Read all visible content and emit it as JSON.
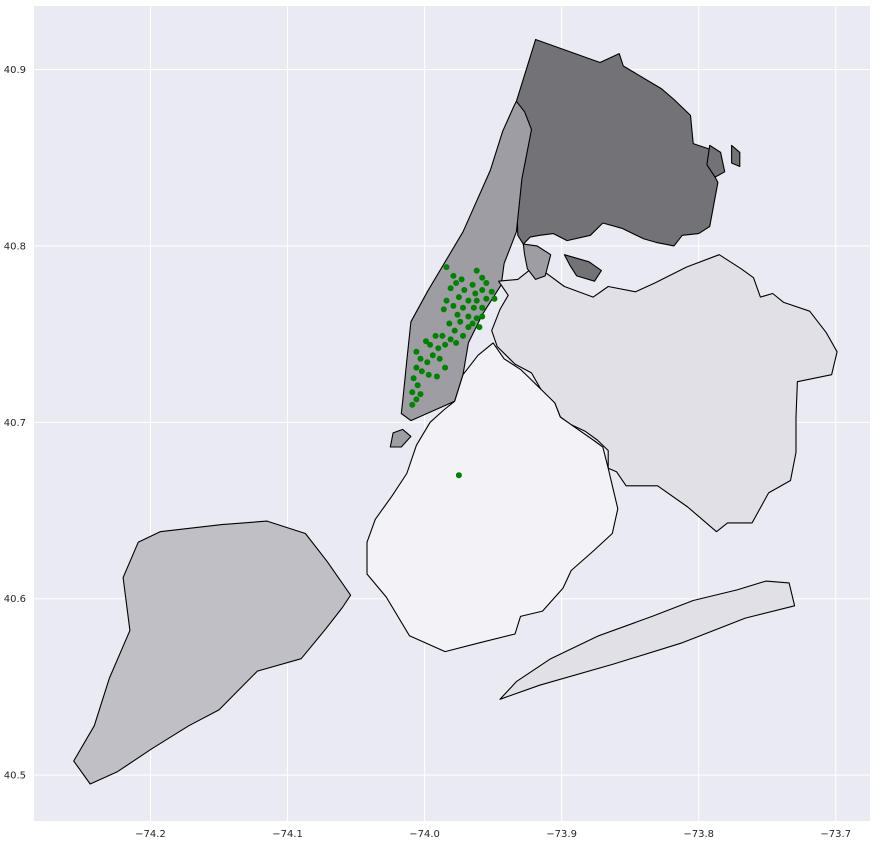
{
  "chart_data": {
    "type": "scatter",
    "xlim": [
      -74.285,
      -73.675
    ],
    "ylim": [
      40.474,
      40.936
    ],
    "grid": true,
    "x_ticks": [
      {
        "value": -74.2,
        "label": "−74.2"
      },
      {
        "value": -74.1,
        "label": "−74.1"
      },
      {
        "value": -74.0,
        "label": "−74.0"
      },
      {
        "value": -73.9,
        "label": "−73.9"
      },
      {
        "value": -73.8,
        "label": "−73.8"
      },
      {
        "value": -73.7,
        "label": "−73.7"
      }
    ],
    "y_ticks": [
      {
        "value": 40.5,
        "label": "40.5"
      },
      {
        "value": 40.6,
        "label": "40.6"
      },
      {
        "value": 40.7,
        "label": "40.7"
      },
      {
        "value": 40.8,
        "label": "40.8"
      },
      {
        "value": 40.9,
        "label": "40.9"
      }
    ],
    "colors": {
      "plot_background": "#eaeaf2",
      "grid": "#ffffff",
      "outline": "#000000",
      "points": "#008000",
      "bronx": "#737277",
      "manhattan": "#9e9da3",
      "queens": "#e1e0e6",
      "brooklyn": "#f2f2f7",
      "staten_island": "#c0bfc5"
    },
    "points": [
      [
        -73.984,
        40.788
      ],
      [
        -73.979,
        40.783
      ],
      [
        -73.973,
        40.781
      ],
      [
        -73.962,
        40.786
      ],
      [
        -73.958,
        40.782
      ],
      [
        -73.965,
        40.778
      ],
      [
        -73.955,
        40.779
      ],
      [
        -73.951,
        40.774
      ],
      [
        -73.958,
        40.775
      ],
      [
        -73.963,
        40.773
      ],
      [
        -73.971,
        40.775
      ],
      [
        -73.977,
        40.779
      ],
      [
        -73.981,
        40.776
      ],
      [
        -73.975,
        40.771
      ],
      [
        -73.968,
        40.769
      ],
      [
        -73.962,
        40.769
      ],
      [
        -73.955,
        40.77
      ],
      [
        -73.949,
        40.77
      ],
      [
        -73.958,
        40.765
      ],
      [
        -73.964,
        40.765
      ],
      [
        -73.972,
        40.765
      ],
      [
        -73.979,
        40.766
      ],
      [
        -73.984,
        40.769
      ],
      [
        -73.986,
        40.764
      ],
      [
        -73.976,
        40.761
      ],
      [
        -73.968,
        40.76
      ],
      [
        -73.962,
        40.759
      ],
      [
        -73.958,
        40.76
      ],
      [
        -73.965,
        40.756
      ],
      [
        -73.96,
        40.754
      ],
      [
        -73.968,
        40.754
      ],
      [
        -73.974,
        40.757
      ],
      [
        -73.978,
        40.752
      ],
      [
        -73.982,
        40.756
      ],
      [
        -73.987,
        40.749
      ],
      [
        -73.992,
        40.749
      ],
      [
        -73.981,
        40.747
      ],
      [
        -73.985,
        40.744
      ],
      [
        -73.99,
        40.742
      ],
      [
        -73.996,
        40.744
      ],
      [
        -73.999,
        40.746
      ],
      [
        -73.977,
        40.745
      ],
      [
        -73.972,
        40.749
      ],
      [
        -73.994,
        40.738
      ],
      [
        -73.998,
        40.734
      ],
      [
        -74.003,
        40.736
      ],
      [
        -74.006,
        40.74
      ],
      [
        -74.006,
        40.731
      ],
      [
        -74.002,
        40.729
      ],
      [
        -73.989,
        40.736
      ],
      [
        -73.985,
        40.731
      ],
      [
        -73.991,
        40.726
      ],
      [
        -73.997,
        40.727
      ],
      [
        -74.008,
        40.725
      ],
      [
        -74.005,
        40.721
      ],
      [
        -74.009,
        40.717
      ],
      [
        -74.006,
        40.713
      ],
      [
        -74.009,
        40.71
      ],
      [
        -74.003,
        40.716
      ],
      [
        -73.975,
        40.67
      ]
    ],
    "regions": [
      {
        "name": "bronx",
        "color_key": "bronx",
        "coords": [
          [
            -73.933,
            40.882
          ],
          [
            -73.919,
            40.917
          ],
          [
            -73.872,
            40.904
          ],
          [
            -73.858,
            40.909
          ],
          [
            -73.855,
            40.902
          ],
          [
            -73.827,
            40.889
          ],
          [
            -73.818,
            40.883
          ],
          [
            -73.806,
            40.874
          ],
          [
            -73.804,
            40.858
          ],
          [
            -73.785,
            40.853
          ],
          [
            -73.793,
            40.846
          ],
          [
            -73.786,
            40.836
          ],
          [
            -73.792,
            40.811
          ],
          [
            -73.8,
            40.807
          ],
          [
            -73.812,
            40.806
          ],
          [
            -73.818,
            40.8
          ],
          [
            -73.831,
            40.802
          ],
          [
            -73.84,
            40.804
          ],
          [
            -73.856,
            40.81
          ],
          [
            -73.87,
            40.813
          ],
          [
            -73.879,
            40.806
          ],
          [
            -73.896,
            40.803
          ],
          [
            -73.906,
            40.807
          ],
          [
            -73.916,
            40.806
          ],
          [
            -73.923,
            40.805
          ],
          [
            -73.928,
            40.801
          ],
          [
            -73.932,
            40.806
          ],
          [
            -73.933,
            40.83
          ],
          [
            -73.929,
            40.846
          ],
          [
            -73.924,
            40.866
          ],
          [
            -73.928,
            40.876
          ]
        ]
      },
      {
        "name": "manhattan",
        "color_key": "manhattan",
        "coords": [
          [
            -73.933,
            40.882
          ],
          [
            -73.927,
            40.876
          ],
          [
            -73.922,
            40.866
          ],
          [
            -73.929,
            40.838
          ],
          [
            -73.933,
            40.808
          ],
          [
            -73.942,
            40.79
          ],
          [
            -73.944,
            40.778
          ],
          [
            -73.958,
            40.761
          ],
          [
            -73.968,
            40.745
          ],
          [
            -73.972,
            40.727
          ],
          [
            -73.978,
            40.712
          ],
          [
            -74.01,
            40.701
          ],
          [
            -74.017,
            40.705
          ],
          [
            -74.016,
            40.712
          ],
          [
            -74.013,
            40.735
          ],
          [
            -74.01,
            40.757
          ],
          [
            -73.998,
            40.774
          ],
          [
            -73.972,
            40.808
          ],
          [
            -73.952,
            40.843
          ],
          [
            -73.943,
            40.865
          ],
          [
            -73.935,
            40.879
          ]
        ]
      },
      {
        "name": "queens",
        "color_key": "queens",
        "coords": [
          [
            -73.946,
            40.78
          ],
          [
            -73.932,
            40.781
          ],
          [
            -73.919,
            40.789
          ],
          [
            -73.898,
            40.777
          ],
          [
            -73.877,
            40.771
          ],
          [
            -73.866,
            40.777
          ],
          [
            -73.846,
            40.774
          ],
          [
            -73.832,
            40.779
          ],
          [
            -73.809,
            40.788
          ],
          [
            -73.785,
            40.795
          ],
          [
            -73.769,
            40.787
          ],
          [
            -73.76,
            40.782
          ],
          [
            -73.755,
            40.771
          ],
          [
            -73.746,
            40.773
          ],
          [
            -73.738,
            40.768
          ],
          [
            -73.719,
            40.763
          ],
          [
            -73.707,
            40.751
          ],
          [
            -73.699,
            40.74
          ],
          [
            -73.703,
            40.727
          ],
          [
            -73.728,
            40.723
          ],
          [
            -73.729,
            40.703
          ],
          [
            -73.729,
            40.683
          ],
          [
            -73.733,
            40.667
          ],
          [
            -73.749,
            40.66
          ],
          [
            -73.761,
            40.643
          ],
          [
            -73.779,
            40.643
          ],
          [
            -73.787,
            40.638
          ],
          [
            -73.808,
            40.652
          ],
          [
            -73.83,
            40.664
          ],
          [
            -73.853,
            40.664
          ],
          [
            -73.86,
            40.672
          ],
          [
            -73.866,
            40.674
          ],
          [
            -73.866,
            40.684
          ],
          [
            -73.874,
            40.69
          ],
          [
            -73.883,
            40.695
          ],
          [
            -73.894,
            40.699
          ],
          [
            -73.901,
            40.703
          ],
          [
            -73.905,
            40.711
          ],
          [
            -73.911,
            40.713
          ],
          [
            -73.922,
            40.728
          ],
          [
            -73.934,
            40.733
          ],
          [
            -73.947,
            40.743
          ],
          [
            -73.951,
            40.752
          ],
          [
            -73.945,
            40.764
          ],
          [
            -73.939,
            40.772
          ]
        ]
      },
      {
        "name": "rockaway",
        "color_key": "queens",
        "coords": [
          [
            -73.945,
            40.543
          ],
          [
            -73.933,
            40.553
          ],
          [
            -73.908,
            40.566
          ],
          [
            -73.873,
            40.579
          ],
          [
            -73.834,
            40.59
          ],
          [
            -73.804,
            40.599
          ],
          [
            -73.772,
            40.605
          ],
          [
            -73.751,
            40.61
          ],
          [
            -73.734,
            40.609
          ],
          [
            -73.73,
            40.596
          ],
          [
            -73.766,
            40.589
          ],
          [
            -73.812,
            40.575
          ],
          [
            -73.862,
            40.563
          ],
          [
            -73.916,
            40.551
          ]
        ]
      },
      {
        "name": "brooklyn",
        "color_key": "brooklyn",
        "coords": [
          [
            -73.978,
            40.712
          ],
          [
            -73.972,
            40.727
          ],
          [
            -73.961,
            40.738
          ],
          [
            -73.95,
            40.745
          ],
          [
            -73.942,
            40.736
          ],
          [
            -73.93,
            40.73
          ],
          [
            -73.922,
            40.724
          ],
          [
            -73.905,
            40.711
          ],
          [
            -73.901,
            40.703
          ],
          [
            -73.89,
            40.697
          ],
          [
            -73.877,
            40.69
          ],
          [
            -73.87,
            40.686
          ],
          [
            -73.866,
            40.674
          ],
          [
            -73.859,
            40.651
          ],
          [
            -73.863,
            40.637
          ],
          [
            -73.877,
            40.627
          ],
          [
            -73.893,
            40.616
          ],
          [
            -73.899,
            40.606
          ],
          [
            -73.914,
            40.593
          ],
          [
            -73.93,
            40.59
          ],
          [
            -73.934,
            40.58
          ],
          [
            -73.96,
            40.575
          ],
          [
            -73.985,
            40.57
          ],
          [
            -74.011,
            40.579
          ],
          [
            -74.028,
            40.601
          ],
          [
            -74.042,
            40.614
          ],
          [
            -74.042,
            40.632
          ],
          [
            -74.036,
            40.645
          ],
          [
            -74.024,
            40.658
          ],
          [
            -74.013,
            40.671
          ],
          [
            -74.006,
            40.687
          ],
          [
            -73.996,
            40.7
          ],
          [
            -73.986,
            40.707
          ]
        ]
      },
      {
        "name": "staten-island",
        "color_key": "staten_island",
        "coords": [
          [
            -74.054,
            40.602
          ],
          [
            -74.071,
            40.621
          ],
          [
            -74.087,
            40.637
          ],
          [
            -74.115,
            40.644
          ],
          [
            -74.148,
            40.642
          ],
          [
            -74.193,
            40.638
          ],
          [
            -74.209,
            40.632
          ],
          [
            -74.22,
            40.612
          ],
          [
            -74.215,
            40.582
          ],
          [
            -74.23,
            40.555
          ],
          [
            -74.241,
            40.528
          ],
          [
            -74.256,
            40.508
          ],
          [
            -74.244,
            40.495
          ],
          [
            -74.224,
            40.502
          ],
          [
            -74.199,
            40.515
          ],
          [
            -74.172,
            40.528
          ],
          [
            -74.15,
            40.537
          ],
          [
            -74.122,
            40.559
          ],
          [
            -74.09,
            40.566
          ],
          [
            -74.072,
            40.583
          ],
          [
            -74.06,
            40.595
          ]
        ]
      },
      {
        "name": "randalls-island",
        "color_key": "manhattan",
        "coords": [
          [
            -73.928,
            40.801
          ],
          [
            -73.918,
            40.8
          ],
          [
            -73.908,
            40.795
          ],
          [
            -73.912,
            40.783
          ],
          [
            -73.919,
            40.781
          ],
          [
            -73.925,
            40.787
          ],
          [
            -73.927,
            40.795
          ]
        ]
      },
      {
        "name": "rikers-island",
        "color_key": "bronx",
        "coords": [
          [
            -73.898,
            40.795
          ],
          [
            -73.88,
            40.791
          ],
          [
            -73.871,
            40.786
          ],
          [
            -73.876,
            40.78
          ],
          [
            -73.889,
            40.783
          ],
          [
            -73.894,
            40.789
          ]
        ]
      },
      {
        "name": "governors-island",
        "color_key": "manhattan",
        "coords": [
          [
            -74.023,
            40.694
          ],
          [
            -74.016,
            40.696
          ],
          [
            -74.01,
            40.692
          ],
          [
            -74.017,
            40.686
          ],
          [
            -74.025,
            40.686
          ]
        ]
      },
      {
        "name": "city-island",
        "color_key": "bronx",
        "coords": [
          [
            -73.792,
            40.857
          ],
          [
            -73.784,
            40.853
          ],
          [
            -73.781,
            40.842
          ],
          [
            -73.788,
            40.839
          ],
          [
            -73.794,
            40.846
          ]
        ]
      },
      {
        "name": "hart-island",
        "color_key": "bronx",
        "coords": [
          [
            -73.776,
            40.857
          ],
          [
            -73.77,
            40.853
          ],
          [
            -73.77,
            40.845
          ],
          [
            -73.776,
            40.847
          ]
        ]
      }
    ]
  }
}
